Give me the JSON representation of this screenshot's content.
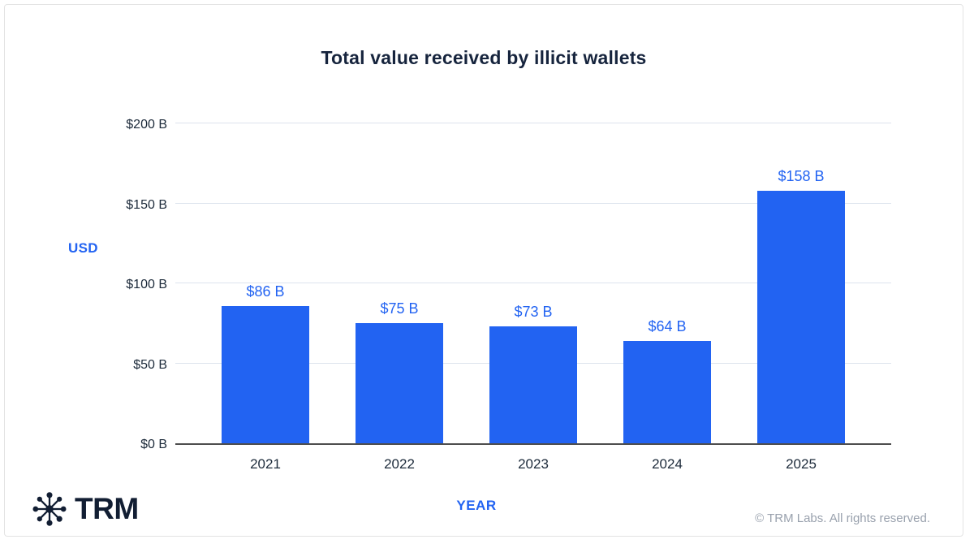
{
  "chart_data": {
    "type": "bar",
    "title": "Total value received by illicit wallets",
    "categories": [
      "2021",
      "2022",
      "2023",
      "2024",
      "2025"
    ],
    "values": [
      86,
      75,
      73,
      64,
      158
    ],
    "value_labels": [
      "$86 B",
      "$75 B",
      "$73 B",
      "$64 B",
      "$158 B"
    ],
    "xlabel": "YEAR",
    "ylabel": "USD",
    "ylim": [
      0,
      200
    ],
    "yticks": [
      0,
      50,
      100,
      150,
      200
    ],
    "ytick_labels": [
      "$0 B",
      "$50 B",
      "$100 B",
      "$150 B",
      "$200 B"
    ],
    "grid": true,
    "legend_position": "none",
    "colors": {
      "bar": "#2263f2",
      "value_label": "#2263f2",
      "axis_title": "#2263f2",
      "tick_label": "#1c2a3a",
      "gridline": "#dde3ed",
      "baseline": "#4d4d4d",
      "title": "#16243d"
    }
  },
  "footer": {
    "logo_text": "TRM",
    "copyright": "© TRM Labs. All rights reserved."
  }
}
